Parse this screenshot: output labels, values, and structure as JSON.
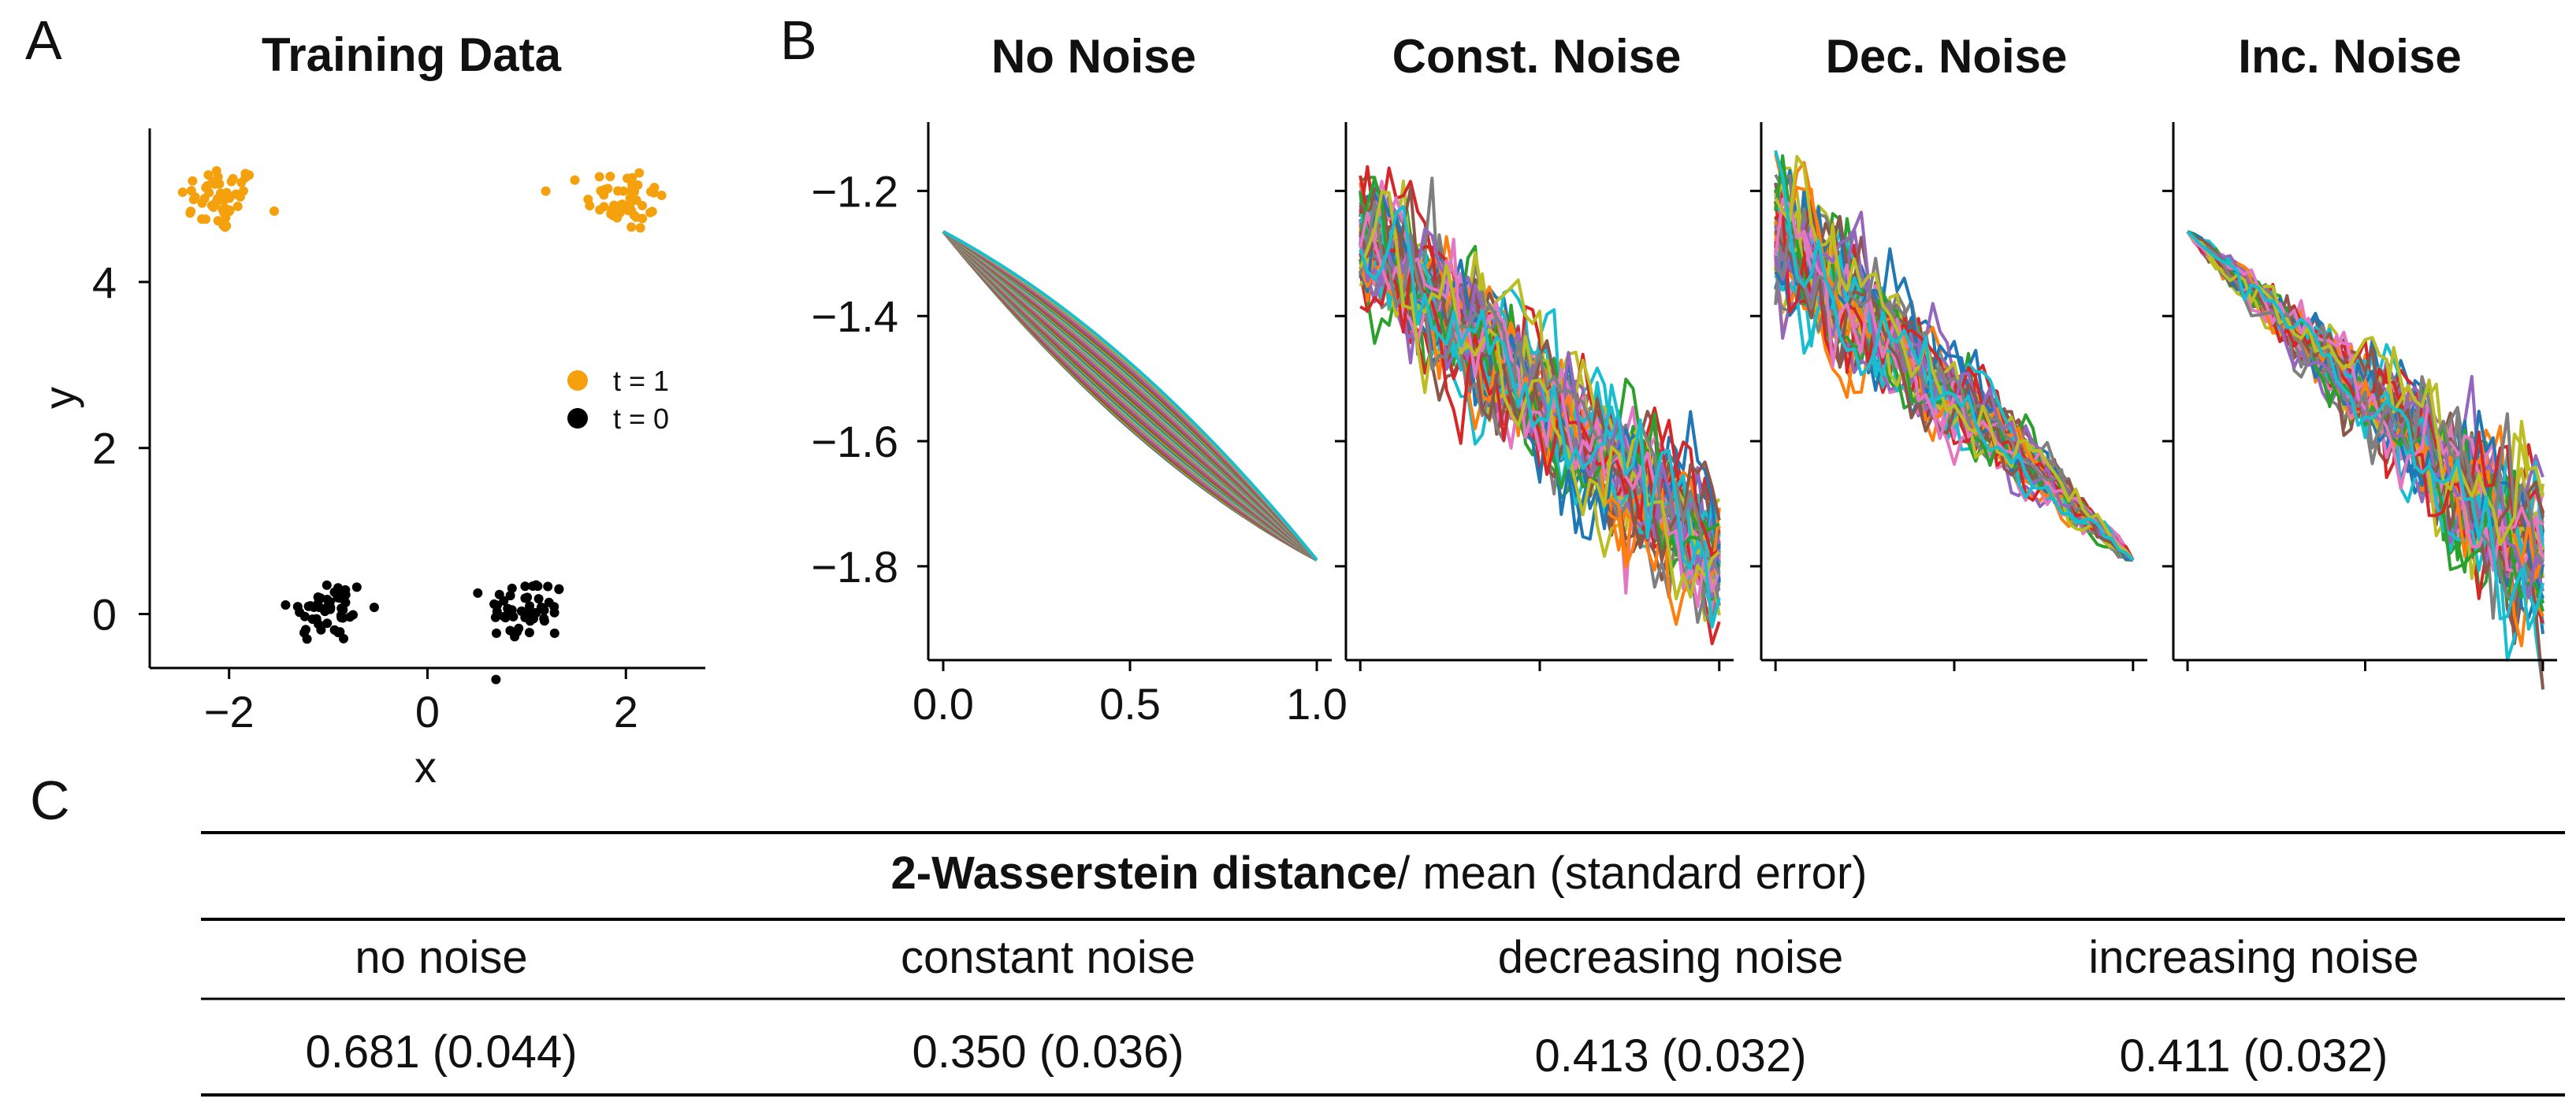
{
  "panels": {
    "a_letter": "A",
    "b_letter": "B",
    "c_letter": "C"
  },
  "chart_data": [
    {
      "type": "scatter",
      "title": "Training Data",
      "xlabel": "x",
      "ylabel": "y",
      "xlim": [
        -2.8,
        2.8
      ],
      "ylim": [
        -0.65,
        5.85
      ],
      "xticks": [
        "−2",
        "0",
        "2"
      ],
      "xtick_values": [
        -2,
        0,
        2
      ],
      "yticks": [
        "0",
        "2",
        "4"
      ],
      "ytick_values": [
        0,
        2,
        4
      ],
      "legend": {
        "placement": "center-right",
        "entries": [
          {
            "label": "t = 1",
            "color": "#f5a10d"
          },
          {
            "label": "t = 0",
            "color": "#000000"
          }
        ]
      },
      "series": [
        {
          "name": "t = 1",
          "color": "#f5a10d",
          "clusters": [
            {
              "center": [
                -2.1,
                5.0
              ],
              "spread": 0.2,
              "count": 50
            },
            {
              "center": [
                2.0,
                5.0
              ],
              "spread": 0.2,
              "count": 50
            }
          ]
        },
        {
          "name": "t = 0",
          "color": "#000000",
          "clusters": [
            {
              "center": [
                -1.0,
                0.05
              ],
              "spread": 0.2,
              "count": 50
            },
            {
              "center": [
                1.0,
                0.05
              ],
              "spread": 0.2,
              "count": 50
            }
          ]
        }
      ]
    },
    {
      "type": "line",
      "title": "No Noise",
      "start": [
        0.0,
        -1.265
      ],
      "end": [
        1.0,
        -1.79
      ],
      "noise": "none",
      "n_trajectories": 50,
      "xlim": [
        -0.04,
        1.04
      ],
      "ylim": [
        -1.95,
        -1.09
      ],
      "xticks": [
        "0.0",
        "0.5",
        "1.0"
      ],
      "xtick_values": [
        0,
        0.5,
        1.0
      ],
      "yticks": [
        "−1.2",
        "−1.4",
        "−1.6",
        "−1.8"
      ],
      "ytick_values": [
        -1.2,
        -1.4,
        -1.6,
        -1.8
      ]
    },
    {
      "type": "line",
      "title": "Const. Noise",
      "start": [
        0.0,
        -1.265
      ],
      "end": [
        1.0,
        -1.79
      ],
      "noise": "constant",
      "n_trajectories": 50,
      "xlim": [
        -0.04,
        1.04
      ],
      "ylim": [
        -1.95,
        -1.09
      ],
      "xtick_values": [
        0,
        0.5,
        1.0
      ],
      "ytick_values": [
        -1.2,
        -1.4,
        -1.6,
        -1.8
      ]
    },
    {
      "type": "line",
      "title": "Dec. Noise",
      "start": [
        0.0,
        -1.265
      ],
      "end": [
        1.0,
        -1.79
      ],
      "noise": "decreasing",
      "n_trajectories": 50,
      "xlim": [
        -0.04,
        1.04
      ],
      "ylim": [
        -1.95,
        -1.09
      ],
      "xtick_values": [
        0,
        0.5,
        1.0
      ],
      "ytick_values": [
        -1.2,
        -1.4,
        -1.6,
        -1.8
      ]
    },
    {
      "type": "line",
      "title": "Inc. Noise",
      "start": [
        0.0,
        -1.265
      ],
      "end": [
        1.0,
        -1.79
      ],
      "noise": "increasing",
      "n_trajectories": 50,
      "xlim": [
        -0.04,
        1.04
      ],
      "ylim": [
        -1.95,
        -1.09
      ],
      "xtick_values": [
        0,
        0.5,
        1.0
      ],
      "ytick_values": [
        -1.2,
        -1.4,
        -1.6,
        -1.8
      ]
    },
    {
      "type": "table",
      "header_bold": "2-Wasserstein distance",
      "header_rest": "/ mean (standard error)",
      "columns": [
        "no noise",
        "constant noise",
        "decreasing noise",
        "increasing noise"
      ],
      "rows": [
        [
          "0.681 (0.044)",
          "0.350 (0.036)",
          "0.413 (0.032)",
          "0.411 (0.032)"
        ]
      ]
    }
  ],
  "colors": {
    "trajectory_palette": [
      "#1f77b4",
      "#ff7f0e",
      "#2ca02c",
      "#d62728",
      "#9467bd",
      "#8c564b",
      "#e377c2",
      "#7f7f7f",
      "#bcbd22",
      "#17becf"
    ]
  }
}
